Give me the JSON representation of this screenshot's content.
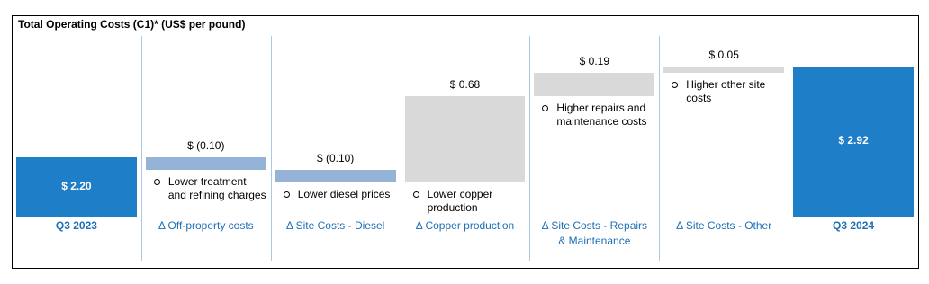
{
  "chart_data": {
    "type": "waterfall",
    "title": "Total Operating Costs (C1)* (US$ per pound)",
    "categories": [
      "Q3 2023",
      "Δ Off-property costs",
      "Δ Site Costs - Diesel",
      "Δ Copper production",
      "Δ Site Costs - Repairs & Maintenance",
      "Δ Site Costs - Other",
      "Q3 2024"
    ],
    "measure": [
      "absolute",
      "relative",
      "relative",
      "relative",
      "relative",
      "relative",
      "absolute"
    ],
    "values": [
      2.2,
      -0.1,
      -0.1,
      0.68,
      0.19,
      0.05,
      2.92
    ],
    "value_labels": [
      "$ 2.20",
      "$ (0.10)",
      "$ (0.10)",
      "$ 0.68",
      "$ 0.19",
      "$ 0.05",
      "$ 2.92"
    ],
    "notes": [
      null,
      "Lower treatment and refining charges",
      "Lower diesel prices",
      "Lower copper production",
      "Higher repairs and maintenance costs",
      "Higher other site costs",
      null
    ],
    "colors": {
      "total": "#1f7ec8",
      "decrease": "#95b3d7",
      "increase": "#d9d9d9"
    },
    "ylim": [
      1.73,
      3.16
    ]
  }
}
